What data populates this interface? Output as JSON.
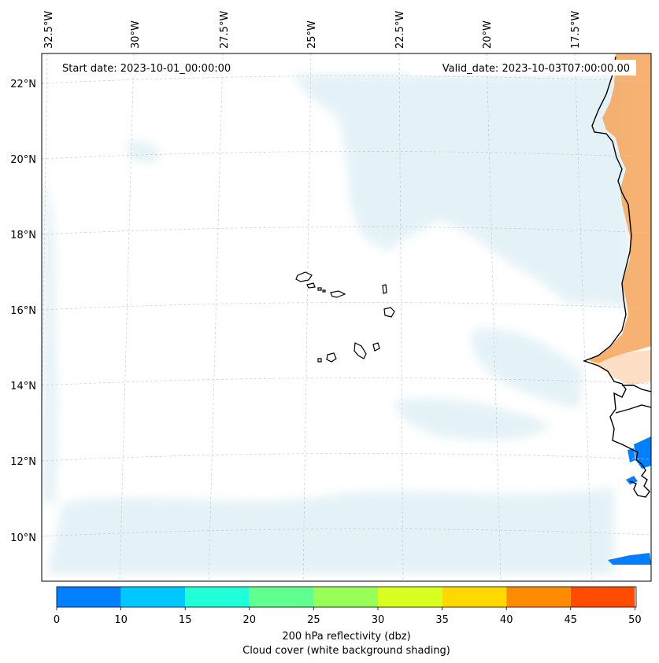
{
  "map": {
    "start_date": "Start date: 2023-10-01_00:00:00",
    "valid_date": "Valid_date: 2023-10-03T07:00:00.00",
    "lon_labels": [
      "32.5°W",
      "30°W",
      "27.5°W",
      "25°W",
      "22.5°W",
      "20°W",
      "17.5°W"
    ],
    "lat_labels": [
      "22°N",
      "20°N",
      "18°N",
      "16°N",
      "14°N",
      "12°N",
      "10°N"
    ],
    "ocean_color": "#ffffff",
    "cloud_color": "#cfe7f0",
    "land_warm_color": "#f6a45a",
    "coast_color": "#000000"
  },
  "colorbar": {
    "ticks": [
      "0",
      "10",
      "15",
      "20",
      "25",
      "30",
      "35",
      "40",
      "45",
      "50"
    ],
    "colors": [
      "#0080ff",
      "#00c8ff",
      "#20ffd8",
      "#60ff90",
      "#98ff58",
      "#d8ff20",
      "#ffd800",
      "#ff8c00",
      "#ff4c00"
    ],
    "label_line1": "200 hPa reflectivity (dbz)",
    "label_line2": "Cloud cover (white background shading)"
  }
}
